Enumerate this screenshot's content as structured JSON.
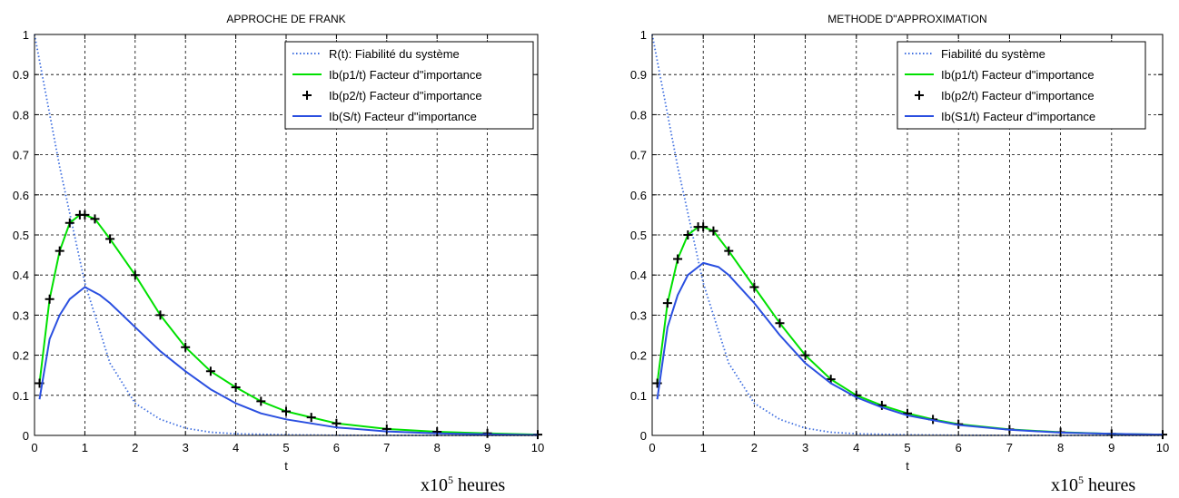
{
  "chart_data": [
    {
      "type": "line",
      "title": "APPROCHE DE FRANK",
      "xlabel": "t",
      "ylabel": "",
      "xlim": [
        0,
        10
      ],
      "ylim": [
        0,
        1
      ],
      "x_ticks": [
        0,
        1,
        2,
        3,
        4,
        5,
        6,
        7,
        8,
        9,
        10
      ],
      "y_ticks": [
        0,
        0.1,
        0.2,
        0.3,
        0.4,
        0.5,
        0.6,
        0.7,
        0.8,
        0.9,
        1
      ],
      "grid": true,
      "legend_position": "top-right",
      "unit_note": {
        "prefix": "x10",
        "exponent": "5",
        "suffix": " heures"
      },
      "series": [
        {
          "name": "R(t): Fiabilité du système",
          "color": "#3f6fe0",
          "style": "dotted",
          "x": [
            0,
            0.5,
            1,
            1.5,
            2,
            2.5,
            3,
            3.5,
            4,
            5,
            6,
            8,
            10
          ],
          "y": [
            1.0,
            0.67,
            0.38,
            0.18,
            0.08,
            0.04,
            0.018,
            0.008,
            0.004,
            0.0015,
            0.0005,
            0.0001,
            0.0
          ]
        },
        {
          "name": "Ib(p1/t) Facteur d\"importance",
          "color": "#00e000",
          "style": "solid",
          "x": [
            0.1,
            0.3,
            0.5,
            0.7,
            0.9,
            1.0,
            1.2,
            1.5,
            2,
            2.5,
            3,
            3.5,
            4,
            4.5,
            5,
            5.5,
            6,
            7,
            8,
            9,
            10
          ],
          "y": [
            0.13,
            0.34,
            0.46,
            0.53,
            0.55,
            0.55,
            0.54,
            0.49,
            0.4,
            0.3,
            0.22,
            0.16,
            0.12,
            0.085,
            0.06,
            0.045,
            0.03,
            0.016,
            0.009,
            0.005,
            0.002
          ]
        },
        {
          "name": "Ib(p2/t) Facteur d\"importance",
          "color": "#000000",
          "style": "plus",
          "x": [
            0.1,
            0.3,
            0.5,
            0.7,
            0.9,
            1.0,
            1.2,
            1.5,
            2,
            2.5,
            3,
            3.5,
            4,
            4.5,
            5,
            5.5,
            6,
            7,
            8,
            9,
            10
          ],
          "y": [
            0.13,
            0.34,
            0.46,
            0.53,
            0.55,
            0.55,
            0.54,
            0.49,
            0.4,
            0.3,
            0.22,
            0.16,
            0.12,
            0.085,
            0.06,
            0.045,
            0.03,
            0.016,
            0.009,
            0.005,
            0.002
          ]
        },
        {
          "name": "Ib(S/t) Facteur d\"importance",
          "color": "#2a4fe0",
          "style": "solid",
          "x": [
            0.1,
            0.3,
            0.5,
            0.7,
            1.0,
            1.3,
            1.5,
            2,
            2.5,
            3,
            3.5,
            4,
            4.5,
            5,
            6,
            7,
            8,
            9,
            10
          ],
          "y": [
            0.09,
            0.24,
            0.3,
            0.34,
            0.37,
            0.35,
            0.33,
            0.27,
            0.21,
            0.16,
            0.115,
            0.08,
            0.055,
            0.04,
            0.02,
            0.01,
            0.005,
            0.003,
            0.001
          ]
        }
      ]
    },
    {
      "type": "line",
      "title": "METHODE D\"APPROXIMATION",
      "xlabel": "t",
      "ylabel": "",
      "xlim": [
        0,
        10
      ],
      "ylim": [
        0,
        1
      ],
      "x_ticks": [
        0,
        1,
        2,
        3,
        4,
        5,
        6,
        7,
        8,
        9,
        10
      ],
      "y_ticks": [
        0,
        0.1,
        0.2,
        0.3,
        0.4,
        0.5,
        0.6,
        0.7,
        0.8,
        0.9,
        1
      ],
      "grid": true,
      "legend_position": "top-right",
      "unit_note": {
        "prefix": "x10",
        "exponent": "5",
        "suffix": " heures"
      },
      "series": [
        {
          "name": "Fiabilité du système",
          "color": "#3f6fe0",
          "style": "dotted",
          "x": [
            0,
            0.5,
            1,
            1.5,
            2,
            2.5,
            3,
            3.5,
            4,
            5,
            6,
            8,
            10
          ],
          "y": [
            1.0,
            0.67,
            0.38,
            0.18,
            0.08,
            0.04,
            0.018,
            0.008,
            0.004,
            0.0015,
            0.0005,
            0.0001,
            0.0
          ]
        },
        {
          "name": "Ib(p1/t) Facteur d\"importance",
          "color": "#00e000",
          "style": "solid",
          "x": [
            0.1,
            0.3,
            0.5,
            0.7,
            0.9,
            1.0,
            1.2,
            1.5,
            2,
            2.5,
            3,
            3.5,
            4,
            4.5,
            5,
            5.5,
            6,
            7,
            8,
            9,
            10
          ],
          "y": [
            0.13,
            0.33,
            0.44,
            0.5,
            0.52,
            0.52,
            0.51,
            0.46,
            0.37,
            0.28,
            0.2,
            0.14,
            0.1,
            0.075,
            0.055,
            0.04,
            0.028,
            0.015,
            0.008,
            0.004,
            0.002
          ]
        },
        {
          "name": "Ib(p2/t) Facteur d\"importance",
          "color": "#000000",
          "style": "plus",
          "x": [
            0.1,
            0.3,
            0.5,
            0.7,
            0.9,
            1.0,
            1.2,
            1.5,
            2,
            2.5,
            3,
            3.5,
            4,
            4.5,
            5,
            5.5,
            6,
            7,
            8,
            9,
            10
          ],
          "y": [
            0.13,
            0.33,
            0.44,
            0.5,
            0.52,
            0.52,
            0.51,
            0.46,
            0.37,
            0.28,
            0.2,
            0.14,
            0.1,
            0.075,
            0.055,
            0.04,
            0.028,
            0.015,
            0.008,
            0.004,
            0.002
          ]
        },
        {
          "name": "Ib(S1/t) Facteur d\"importance",
          "color": "#2a4fe0",
          "style": "solid",
          "x": [
            0.1,
            0.3,
            0.5,
            0.7,
            1.0,
            1.3,
            1.5,
            2,
            2.5,
            3,
            3.5,
            4,
            4.5,
            5,
            6,
            7,
            8,
            9,
            10
          ],
          "y": [
            0.09,
            0.27,
            0.35,
            0.4,
            0.43,
            0.42,
            0.4,
            0.33,
            0.25,
            0.18,
            0.13,
            0.095,
            0.07,
            0.05,
            0.026,
            0.014,
            0.007,
            0.004,
            0.002
          ]
        }
      ]
    }
  ]
}
